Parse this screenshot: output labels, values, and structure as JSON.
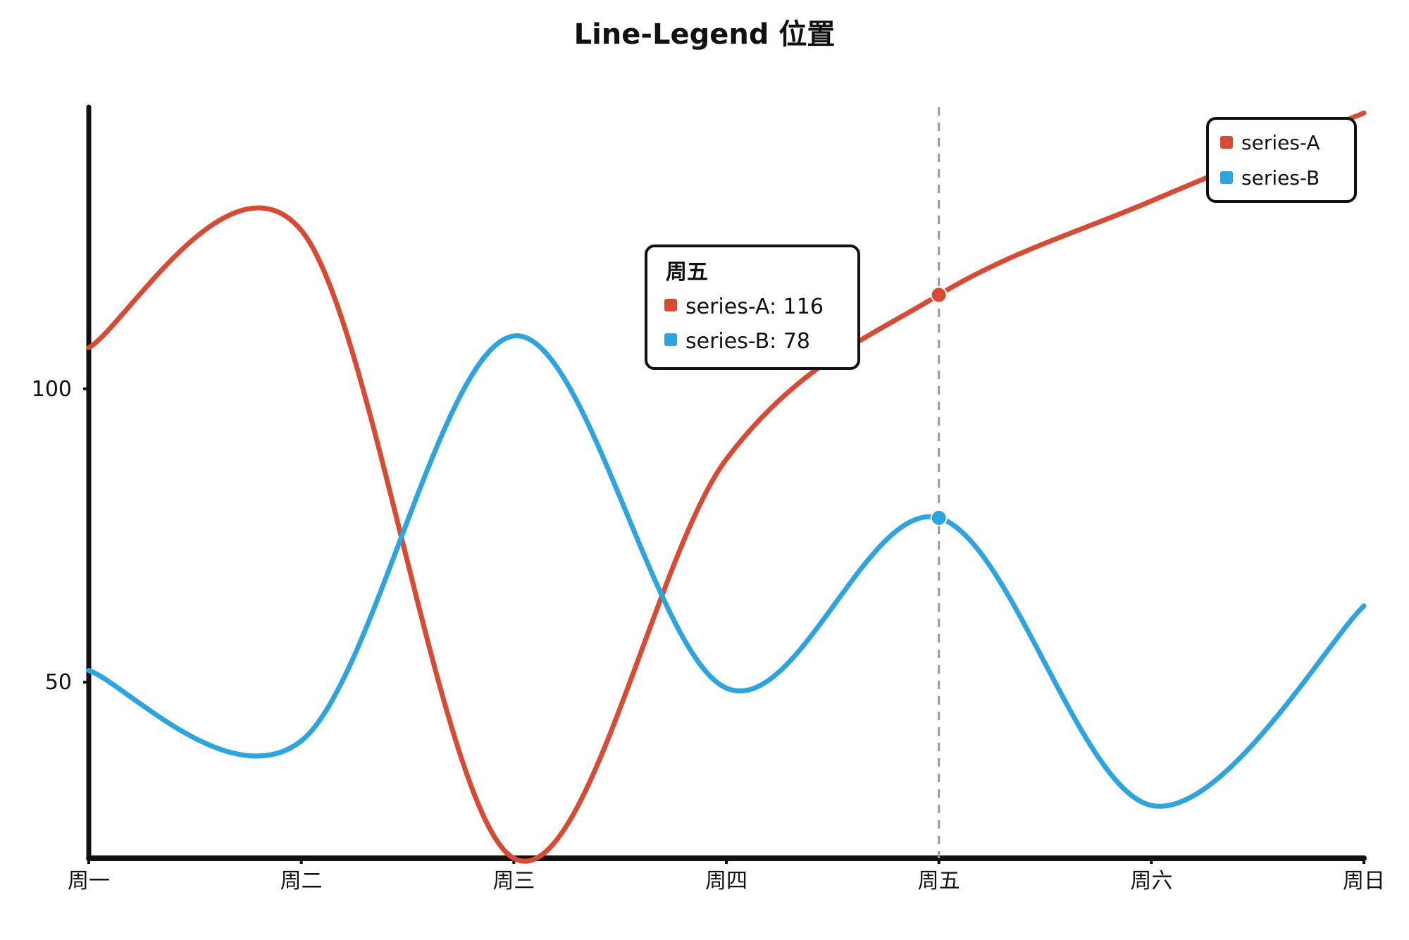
{
  "chart_data": {
    "type": "line",
    "title": "Line-Legend 位置",
    "xlabel": "",
    "ylabel": "",
    "categories": [
      "周一",
      "周二",
      "周三",
      "周四",
      "周五",
      "周六",
      "周日"
    ],
    "series": [
      {
        "name": "series-A",
        "color": "#da4a33",
        "values": [
          107,
          127,
          20,
          88,
          116,
          132,
          147
        ]
      },
      {
        "name": "series-B",
        "color": "#2ba5e1",
        "values": [
          52,
          40,
          109,
          49,
          78,
          29,
          63
        ]
      }
    ],
    "ylim": [
      20,
      148
    ],
    "y_ticks": [
      50,
      100
    ],
    "grid": false,
    "legend": {
      "position": "top-right"
    },
    "tooltip": {
      "category": "周五",
      "lines": [
        {
          "label": "series-A: 116",
          "color": "#da4a33"
        },
        {
          "label": "series-B: 78",
          "color": "#2ba5e1"
        }
      ]
    },
    "axis_color": "#111111",
    "marker_line_color": "#9a9a9a"
  }
}
